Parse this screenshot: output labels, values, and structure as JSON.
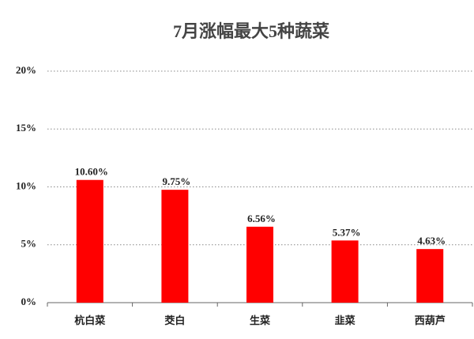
{
  "chart_data": {
    "type": "bar",
    "title": "7月涨幅最大5种蔬菜",
    "categories": [
      "杭白菜",
      "茭白",
      "生菜",
      "韭菜",
      "西葫芦"
    ],
    "values": [
      10.6,
      9.75,
      6.56,
      5.37,
      4.63
    ],
    "value_labels": [
      "10.60%",
      "9.75%",
      "6.56%",
      "5.37%",
      "4.63%"
    ],
    "color": "#ff0000",
    "ylim": [
      0,
      20
    ],
    "yticks": [
      {
        "value": 0,
        "label": "0%"
      },
      {
        "value": 5,
        "label": "5%"
      },
      {
        "value": 10,
        "label": "10%"
      },
      {
        "value": 15,
        "label": "15%"
      },
      {
        "value": 20,
        "label": "20%"
      }
    ],
    "grid": true
  }
}
